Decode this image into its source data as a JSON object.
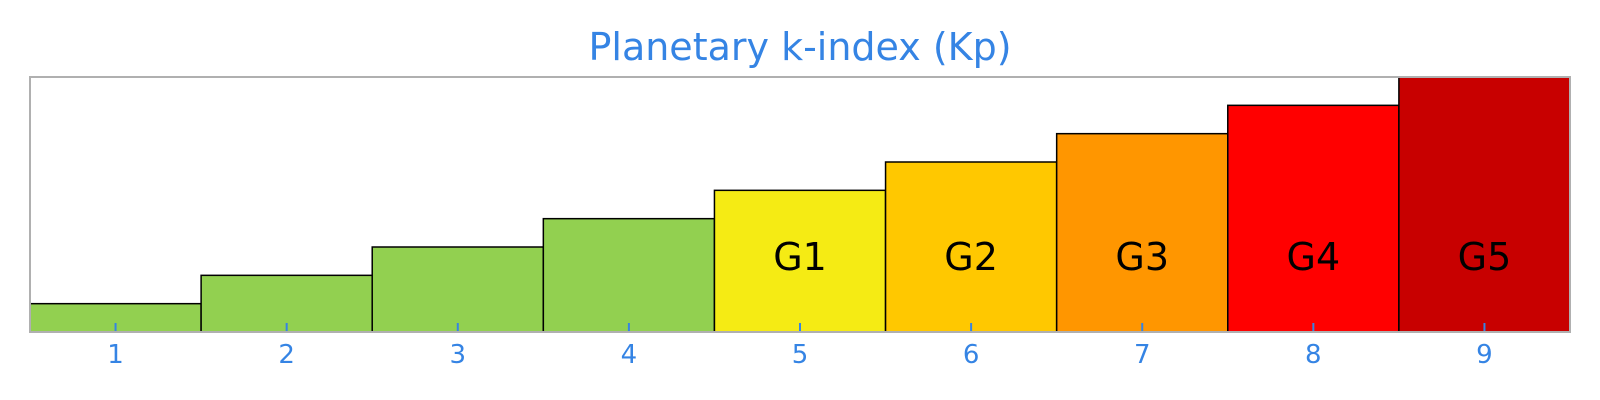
{
  "chart_data": {
    "type": "bar",
    "title": "Planetary k-index (Kp)",
    "xlabel": "",
    "ylabel": "",
    "categories": [
      "1",
      "2",
      "3",
      "4",
      "5",
      "6",
      "7",
      "8",
      "9"
    ],
    "values": [
      1,
      2,
      3,
      4,
      5,
      6,
      7,
      8,
      9
    ],
    "ylim": [
      0,
      9
    ],
    "grid": false,
    "bar_labels": [
      "",
      "",
      "",
      "",
      "G1",
      "G2",
      "G3",
      "G4",
      "G5"
    ],
    "bar_colors": [
      "#92d050",
      "#92d050",
      "#92d050",
      "#92d050",
      "#f5eb14",
      "#ffc800",
      "#ff9600",
      "#ff0000",
      "#c80000"
    ]
  },
  "colors": {
    "accent": "#3584e4",
    "axis_frame": "#b0b0b0",
    "bar_edge": "#000000"
  }
}
